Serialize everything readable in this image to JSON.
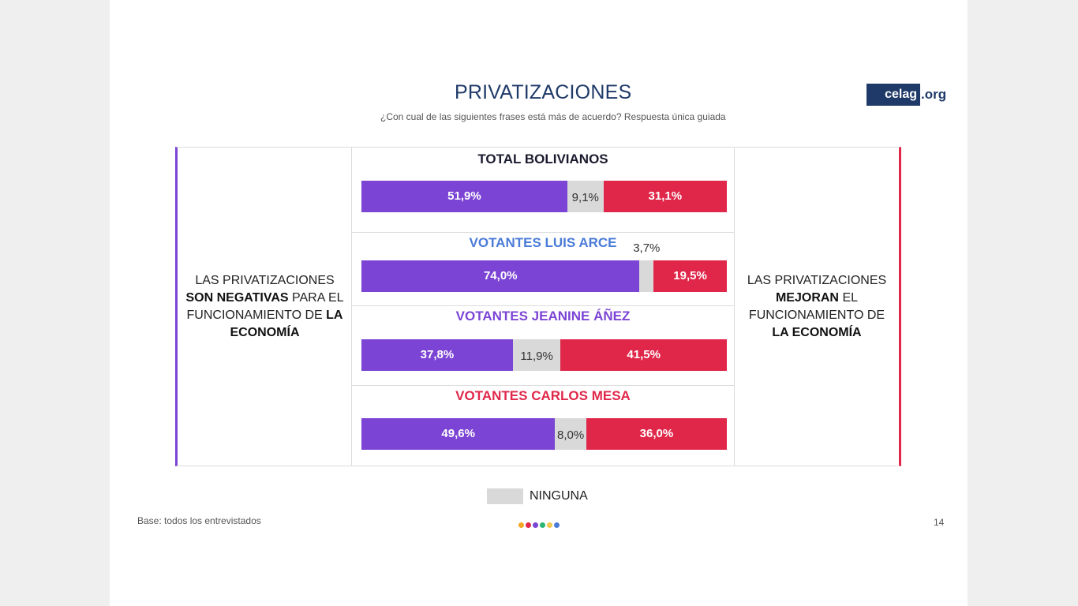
{
  "title": "PRIVATIZACIONES",
  "subtitle": "¿Con cual de las siguientes frases está más de acuerdo? Respuesta única guiada",
  "logo": {
    "box_text": "celag",
    "ext_text": ".org"
  },
  "left_statement": {
    "p1": "LAS PRIVATIZACIONES",
    "p2": "SON NEGATIVAS",
    "p3": "PARA EL FUNCIONAMIENTO DE",
    "p4": "LA ECONOMÍA"
  },
  "right_statement": {
    "p1": "LAS PRIVATIZACIONES",
    "p2": "MEJORAN",
    "p3": "EL FUNCIONAMIENTO DE",
    "p4": "LA ECONOMÍA"
  },
  "legend": {
    "label": "NINGUNA"
  },
  "footer": {
    "base": "Base: todos los entrevistados",
    "page": "14"
  },
  "colors": {
    "negative": "#7b44d4",
    "none": "#d9d9d9",
    "positive": "#e0274a"
  },
  "dot_colors": [
    "#f5a623",
    "#e0274a",
    "#7b44d4",
    "#2bb673",
    "#f2c94c",
    "#4a7bd8"
  ],
  "chart_data": {
    "type": "bar",
    "stacked": true,
    "orientation": "horizontal",
    "series_names": [
      "",
      "NINGUNA",
      ""
    ],
    "groups": [
      {
        "name": "TOTAL BOLIVIANOS",
        "title_color": "#1a1a2e",
        "values": [
          51.9,
          9.1,
          31.1
        ],
        "labels": [
          "51,9%",
          "9,1%",
          "31,1%"
        ]
      },
      {
        "name": "VOTANTES LUIS ARCE",
        "title_color": "#4a7bd8",
        "values": [
          74.0,
          3.7,
          19.5
        ],
        "labels": [
          "74,0%",
          "3,7%",
          "19,5%"
        ]
      },
      {
        "name": "VOTANTES JEANINE ÁÑEZ",
        "title_color": "#7b44d4",
        "values": [
          37.8,
          11.9,
          41.5
        ],
        "labels": [
          "37,8%",
          "11,9%",
          "41,5%"
        ]
      },
      {
        "name": "VOTANTES CARLOS MESA",
        "title_color": "#e0274a",
        "values": [
          49.6,
          8.0,
          36.0
        ],
        "labels": [
          "49,6%",
          "8,0%",
          "36,0%"
        ]
      }
    ]
  }
}
